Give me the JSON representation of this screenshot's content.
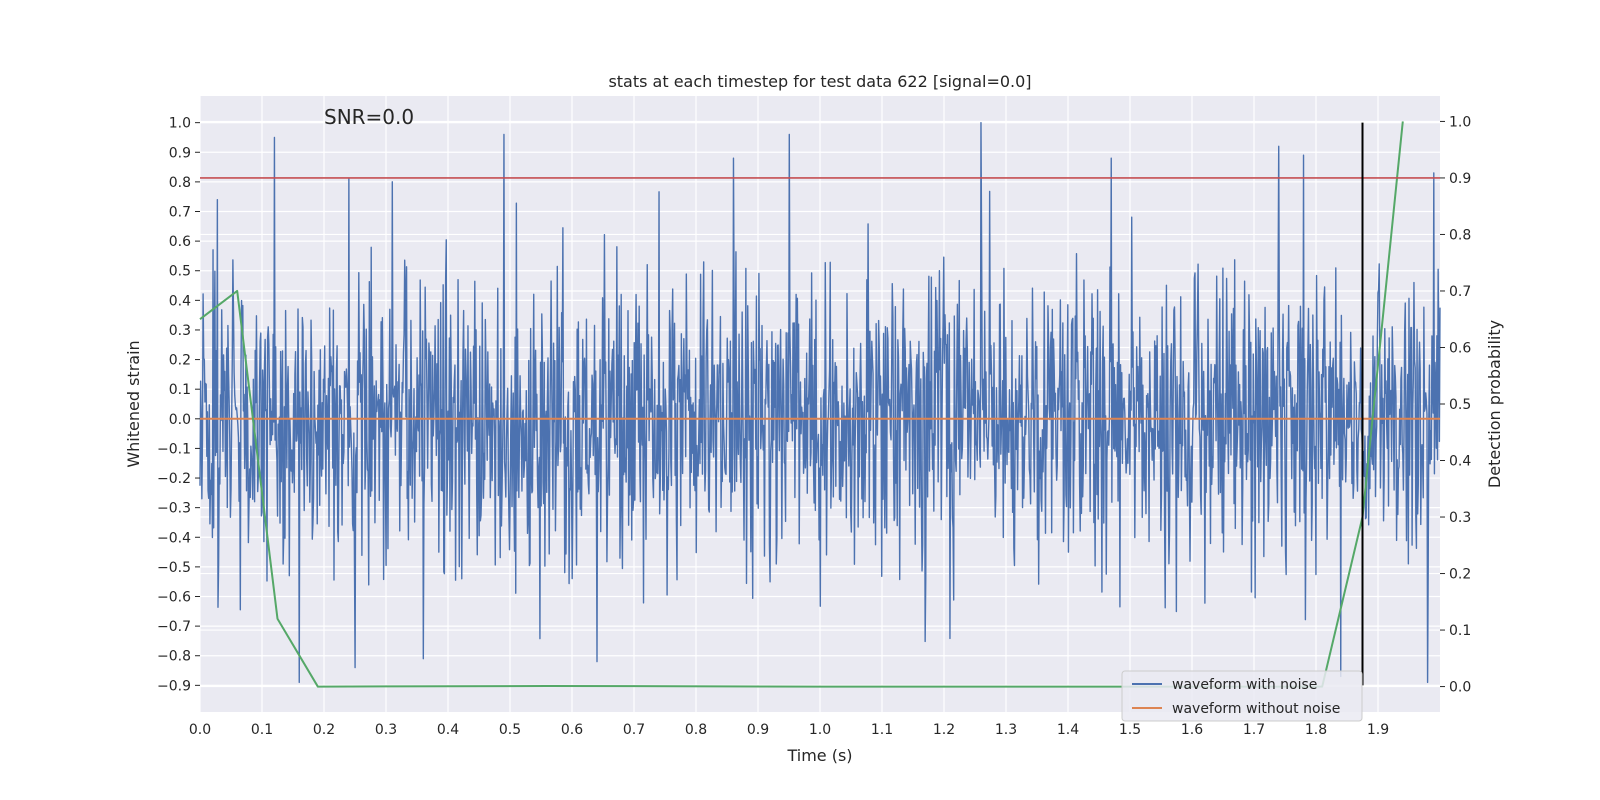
{
  "chart_data": {
    "type": "line",
    "title": "stats at each timestep for test data 622 [signal=0.0]",
    "xlabel": "Time (s)",
    "ylabel": "Whitened strain",
    "y2label": "Detection probability",
    "annotation": "SNR=0.0",
    "xlim": [
      0.0,
      2.0
    ],
    "ylim": [
      -0.99,
      1.09
    ],
    "y2lim": [
      -0.045,
      1.045
    ],
    "xticks": [
      "0.0",
      "0.1",
      "0.2",
      "0.3",
      "0.4",
      "0.5",
      "0.6",
      "0.7",
      "0.8",
      "0.9",
      "1.0",
      "1.1",
      "1.2",
      "1.3",
      "1.4",
      "1.5",
      "1.6",
      "1.7",
      "1.8",
      "1.9"
    ],
    "yticks": [
      "1.0",
      "0.9",
      "0.8",
      "0.7",
      "0.6",
      "0.5",
      "0.4",
      "0.3",
      "0.2",
      "0.1",
      "0.0",
      "−0.1",
      "−0.2",
      "−0.3",
      "−0.4",
      "−0.5",
      "−0.6",
      "−0.7",
      "−0.8",
      "−0.9"
    ],
    "y2ticks": [
      "1.0",
      "0.9",
      "0.8",
      "0.7",
      "0.6",
      "0.5",
      "0.4",
      "0.3",
      "0.2",
      "0.1",
      "0.0"
    ],
    "grid": true,
    "threshold": {
      "value": 0.9,
      "axis": "y2",
      "color": "#c44e52"
    },
    "marker_time": 1.875,
    "series": [
      {
        "name": "waveform with noise",
        "color": "#4c72b0",
        "axis": "y",
        "kind": "noise",
        "x_start": 0.0,
        "x_end": 2.0,
        "n_points": 2000,
        "sigma": 0.24,
        "peaks": [
          {
            "x": 0.12,
            "y": 0.95
          },
          {
            "x": 0.24,
            "y": 0.81
          },
          {
            "x": 0.31,
            "y": 0.8
          },
          {
            "x": 0.49,
            "y": 0.96
          },
          {
            "x": 0.86,
            "y": 0.88
          },
          {
            "x": 0.95,
            "y": 0.96
          },
          {
            "x": 1.26,
            "y": 1.0
          },
          {
            "x": 1.47,
            "y": 0.88
          },
          {
            "x": 1.74,
            "y": 0.92
          },
          {
            "x": 1.78,
            "y": 0.89
          },
          {
            "x": 1.99,
            "y": 0.83
          },
          {
            "x": 0.16,
            "y": -0.89
          },
          {
            "x": 0.25,
            "y": -0.84
          },
          {
            "x": 0.36,
            "y": -0.81
          },
          {
            "x": 0.64,
            "y": -0.82
          },
          {
            "x": 1.84,
            "y": -0.87
          },
          {
            "x": 1.98,
            "y": -0.89
          }
        ]
      },
      {
        "name": "waveform without noise",
        "color": "#dd8452",
        "axis": "y",
        "kind": "line",
        "x": [
          0.0,
          2.0
        ],
        "y": [
          0.0,
          0.0
        ]
      },
      {
        "name": "detection probability",
        "color": "#55a868",
        "axis": "y2",
        "kind": "line",
        "x": [
          0.0,
          0.06,
          0.125,
          0.19,
          0.56,
          1.0,
          1.5,
          1.81,
          1.875,
          1.94
        ],
        "y": [
          0.65,
          0.7,
          0.12,
          0.0,
          0.001,
          0.0,
          0.0,
          0.0,
          0.3,
          1.0
        ]
      }
    ],
    "legend": {
      "position": "lower-right",
      "entries": [
        "waveform with noise",
        "waveform without noise"
      ]
    }
  }
}
